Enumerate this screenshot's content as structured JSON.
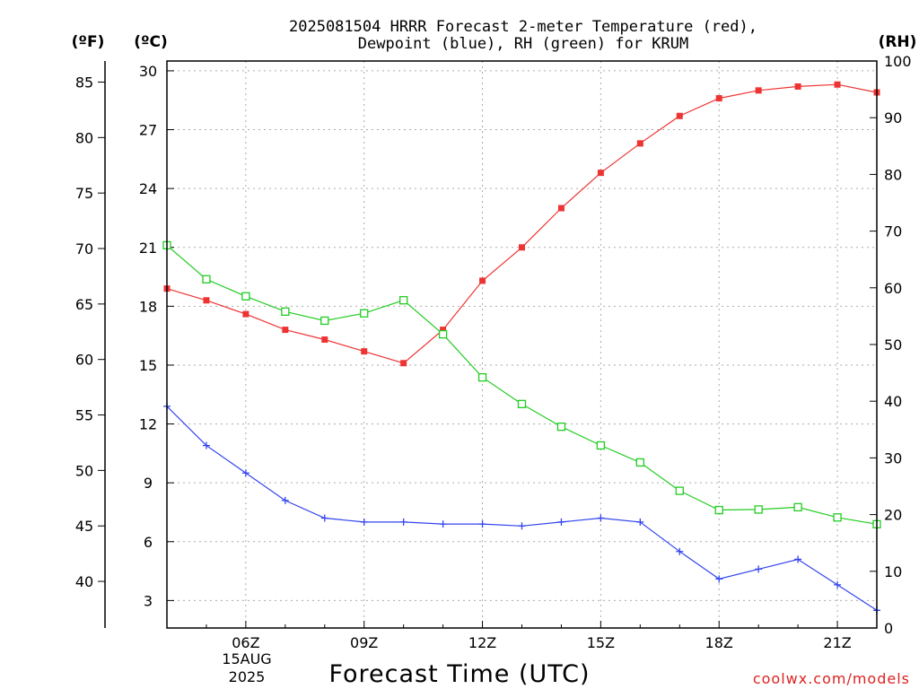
{
  "chart_data": {
    "type": "line",
    "title_lines": [
      "2025081504 HRRR Forecast 2-meter Temperature (red),",
      "Dewpoint (blue), RH (green) for KRUM"
    ],
    "xlabel": "Forecast Time (UTC)",
    "date_label": [
      "15AUG",
      "2025"
    ],
    "credit": "coolwx.com/models",
    "left_axis_f": {
      "unit_label": "(ºF)",
      "ticks": [
        40,
        45,
        50,
        55,
        60,
        65,
        70,
        75,
        80,
        85
      ],
      "range": [
        35.8,
        86.9
      ]
    },
    "left_axis_c": {
      "unit_label": "(ºC)",
      "ticks": [
        3,
        6,
        9,
        12,
        15,
        18,
        21,
        24,
        27,
        30
      ],
      "range": [
        1.6,
        30.5
      ]
    },
    "right_axis_rh": {
      "unit_label": "(RH)",
      "ticks": [
        0,
        10,
        20,
        30,
        40,
        50,
        60,
        70,
        80,
        90,
        100
      ],
      "range": [
        0,
        100
      ]
    },
    "x": {
      "hours": [
        4,
        5,
        6,
        7,
        8,
        9,
        10,
        11,
        12,
        13,
        14,
        15,
        16,
        17,
        18,
        19,
        20,
        21,
        22
      ],
      "range": [
        4,
        22
      ],
      "tick_hours": [
        6,
        9,
        12,
        15,
        18,
        21
      ],
      "tick_labels": [
        "06Z",
        "09Z",
        "12Z",
        "15Z",
        "18Z",
        "21Z"
      ]
    },
    "grid": true,
    "series": [
      {
        "key": "temperature",
        "color": "#ee3333",
        "marker": "filled-square",
        "axis": "celsius",
        "values": [
          18.9,
          18.3,
          17.6,
          16.8,
          16.3,
          15.7,
          15.1,
          16.8,
          19.3,
          21.0,
          23.0,
          24.8,
          26.3,
          27.7,
          28.6,
          29.0,
          29.2,
          29.3,
          28.9
        ]
      },
      {
        "key": "dewpoint",
        "color": "#3344ee",
        "marker": "plus",
        "axis": "celsius",
        "values": [
          12.9,
          10.9,
          9.5,
          8.1,
          7.2,
          7.0,
          7.0,
          6.9,
          6.9,
          6.8,
          7.0,
          7.2,
          7.0,
          5.5,
          4.1,
          4.6,
          5.1,
          3.8,
          2.5
        ]
      },
      {
        "key": "relative_humidity",
        "color": "#22cc22",
        "marker": "open-square",
        "axis": "rh",
        "values": [
          67.5,
          61.5,
          58.5,
          55.8,
          54.2,
          55.5,
          57.8,
          51.8,
          44.2,
          39.5,
          35.5,
          32.2,
          29.2,
          24.2,
          20.8,
          20.9,
          21.3,
          19.5,
          18.3
        ]
      }
    ]
  }
}
